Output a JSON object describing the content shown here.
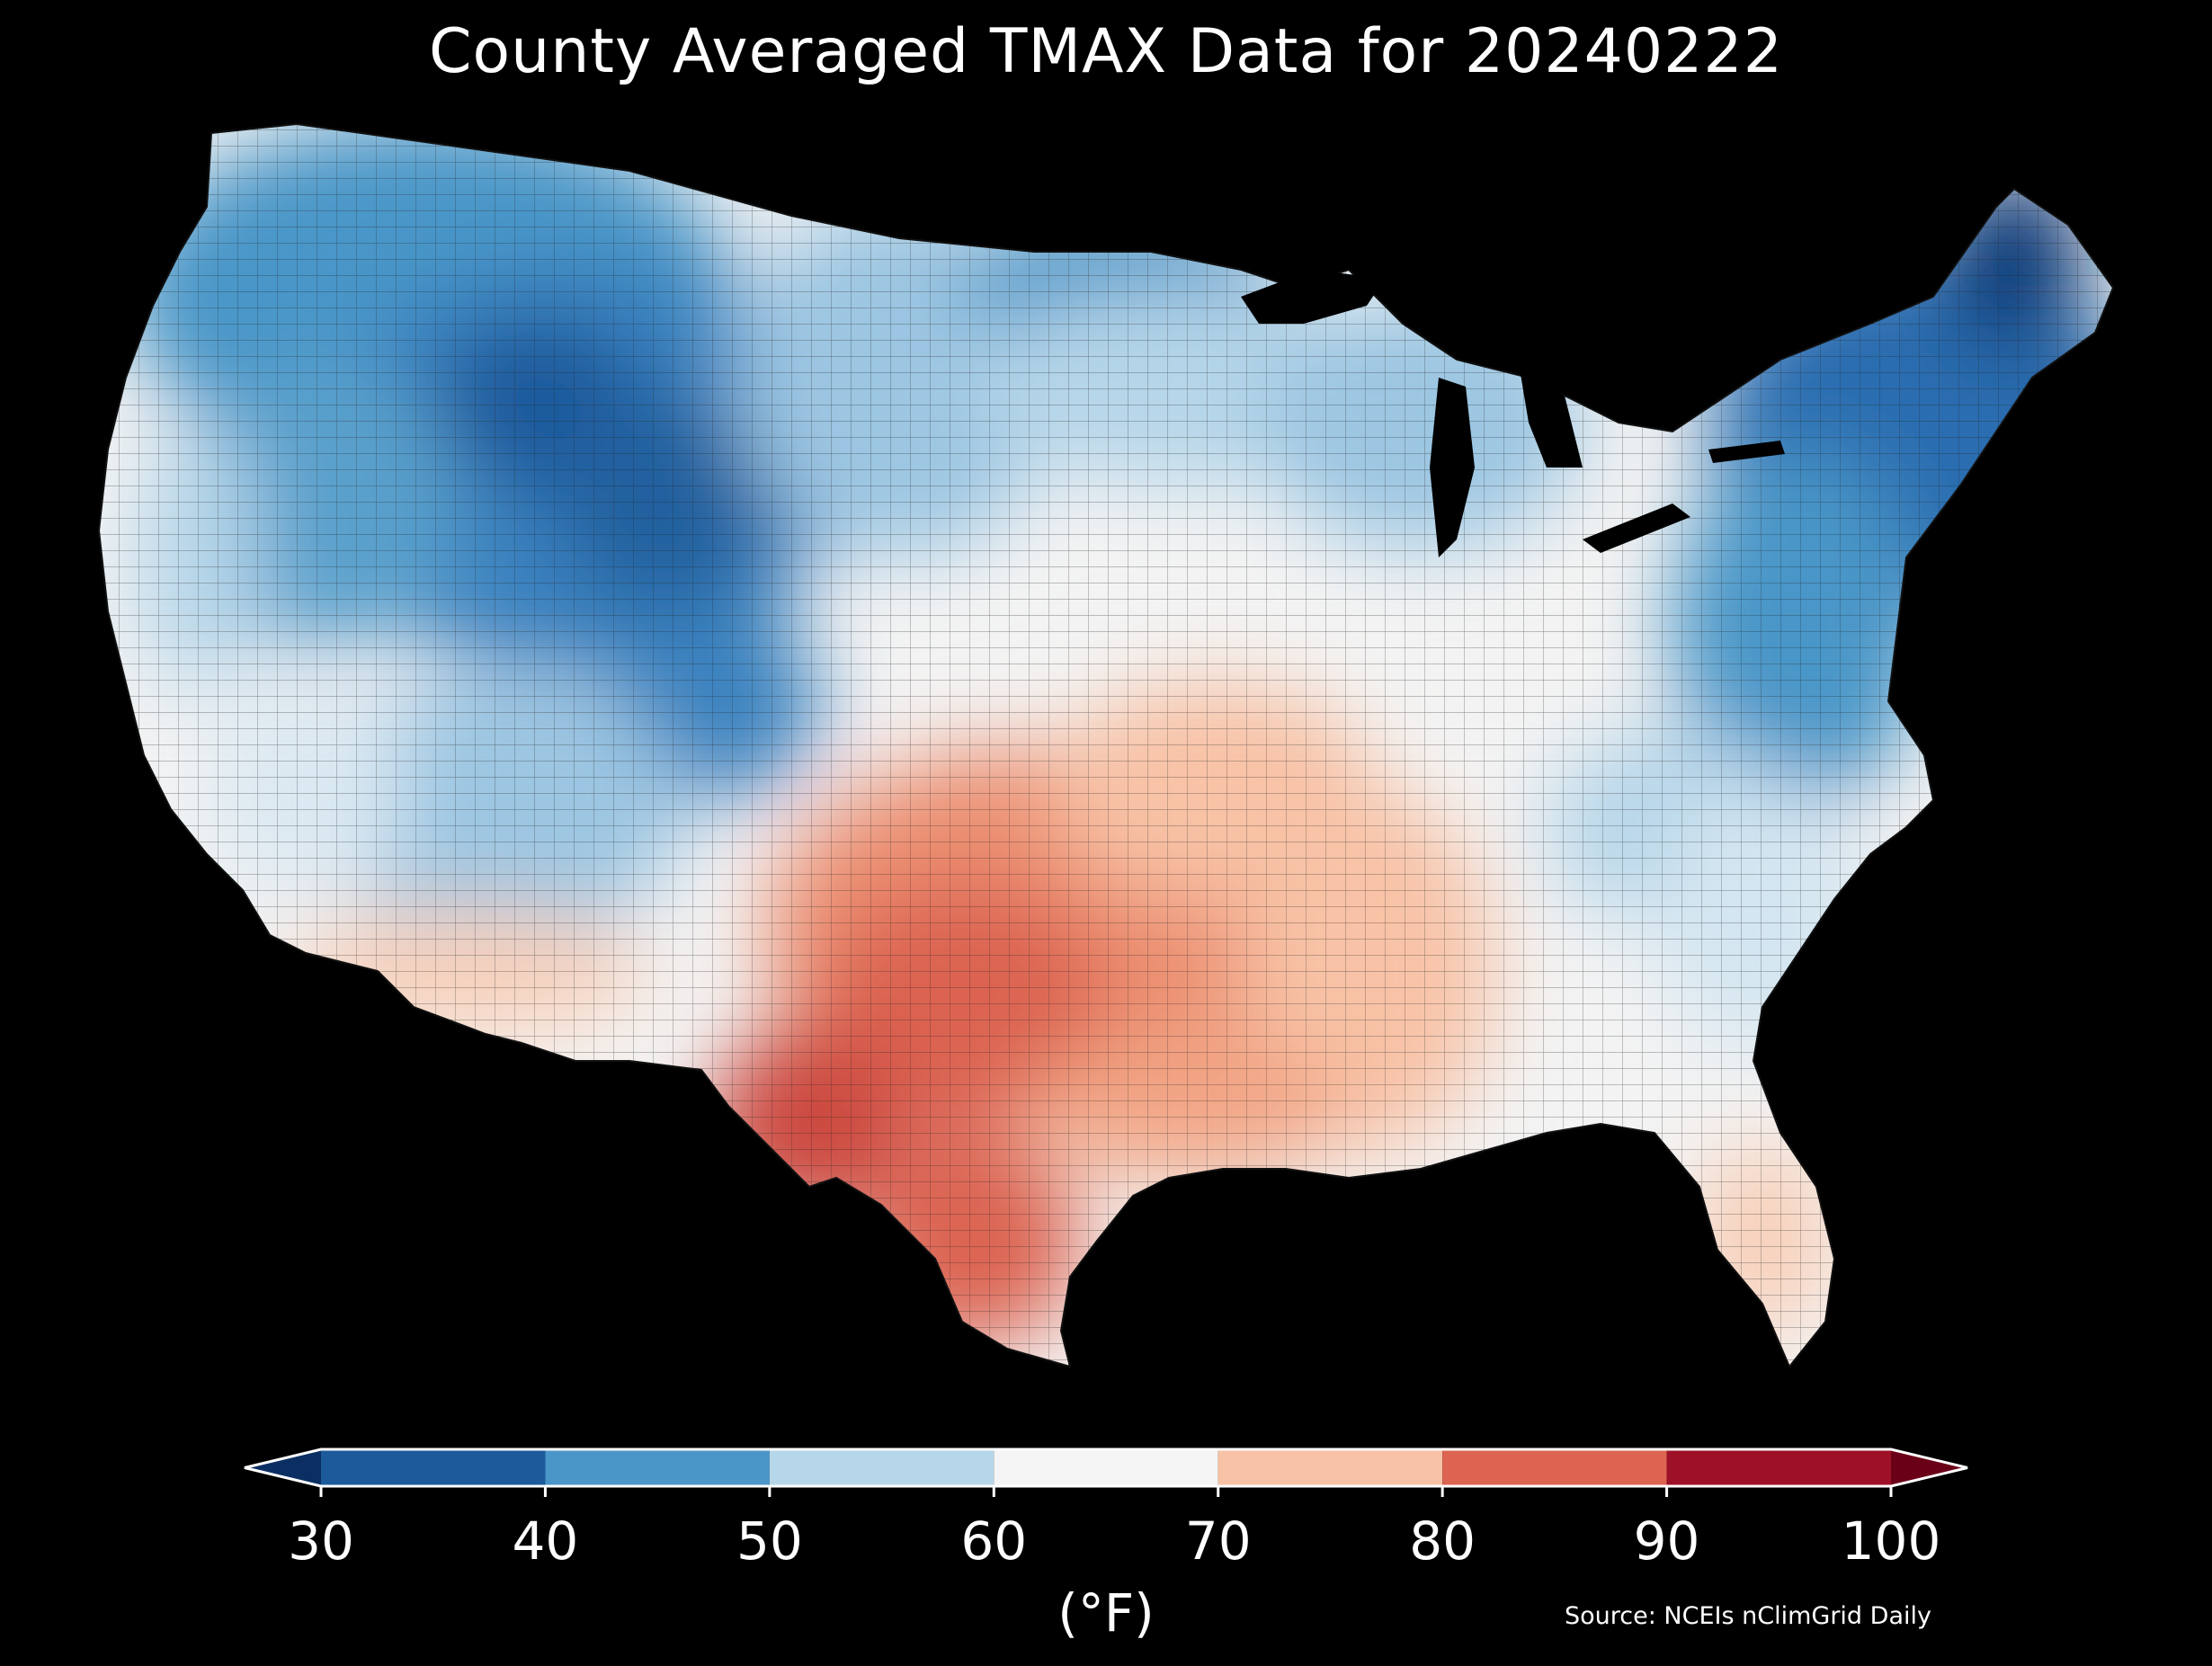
{
  "title": "County Averaged TMAX Data for 20240222",
  "colorbar": {
    "ticks": [
      "30",
      "40",
      "50",
      "60",
      "70",
      "80",
      "90",
      "100"
    ],
    "unit": "(°F)",
    "bins": [
      {
        "from": 30,
        "to": 40,
        "color": "#1c5a9c"
      },
      {
        "from": 40,
        "to": 50,
        "color": "#4a96c8"
      },
      {
        "from": 50,
        "to": 60,
        "color": "#b6d6e9"
      },
      {
        "from": 60,
        "to": 70,
        "color": "#f5f5f5"
      },
      {
        "from": 70,
        "to": 80,
        "color": "#f8c2a6"
      },
      {
        "from": 80,
        "to": 90,
        "color": "#dc6451"
      },
      {
        "from": 90,
        "to": 100,
        "color": "#9e1027"
      }
    ],
    "under_color": "#0b2f63",
    "over_color": "#6a0017"
  },
  "source": "Source: NCEIs nClimGrid Daily",
  "map": {
    "region": "contiguous-us-counties",
    "variable": "TMAX",
    "date": "20240222",
    "region_values_F": {
      "northern-rockies": 35,
      "pacific-northwest": 45,
      "great-basin": 45,
      "northern-plains": 52,
      "upper-midwest": 48,
      "great-lakes": 55,
      "northeast": 38,
      "mid-atlantic": 50,
      "southeast": 62,
      "florida": 72,
      "southern-plains": 82,
      "west-texas": 88,
      "desert-southwest": 72,
      "california-coast": 62,
      "gulf-coast": 74,
      "ohio-valley": 64
    }
  }
}
